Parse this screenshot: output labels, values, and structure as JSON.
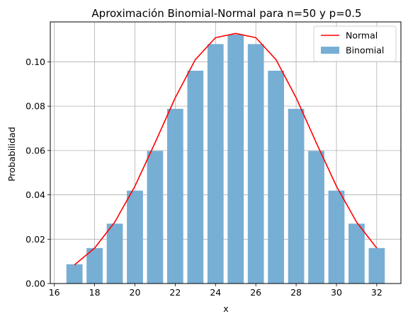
{
  "chart_data": {
    "type": "bar",
    "title": "Aproximación Binomial-Normal para n=50 y p=0.5",
    "xlabel": "x",
    "ylabel": "Probabilidad",
    "xlim": [
      15.8,
      33.2
    ],
    "ylim": [
      0,
      0.118
    ],
    "xticks": [
      16,
      18,
      20,
      22,
      24,
      26,
      28,
      30,
      32
    ],
    "yticks": [
      0.0,
      0.02,
      0.04,
      0.06,
      0.08,
      0.1
    ],
    "ytick_labels": [
      "0.00",
      "0.02",
      "0.04",
      "0.06",
      "0.08",
      "0.10"
    ],
    "grid": true,
    "legend_position": "top-right",
    "x": [
      17,
      18,
      19,
      20,
      21,
      22,
      23,
      24,
      25,
      26,
      27,
      28,
      29,
      30,
      31,
      32
    ],
    "series": [
      {
        "name": "Normal",
        "kind": "line",
        "color": "#ff0000",
        "values": [
          0.0084,
          0.016,
          0.0277,
          0.0439,
          0.0635,
          0.0838,
          0.101,
          0.1109,
          0.1128,
          0.1109,
          0.101,
          0.0838,
          0.0635,
          0.0439,
          0.0277,
          0.016
        ]
      },
      {
        "name": "Binomial",
        "kind": "bar",
        "color": "#77aed4",
        "values": [
          0.0087,
          0.016,
          0.027,
          0.0419,
          0.0598,
          0.0788,
          0.096,
          0.108,
          0.1123,
          0.108,
          0.096,
          0.0788,
          0.0598,
          0.0419,
          0.027,
          0.016
        ]
      }
    ]
  }
}
